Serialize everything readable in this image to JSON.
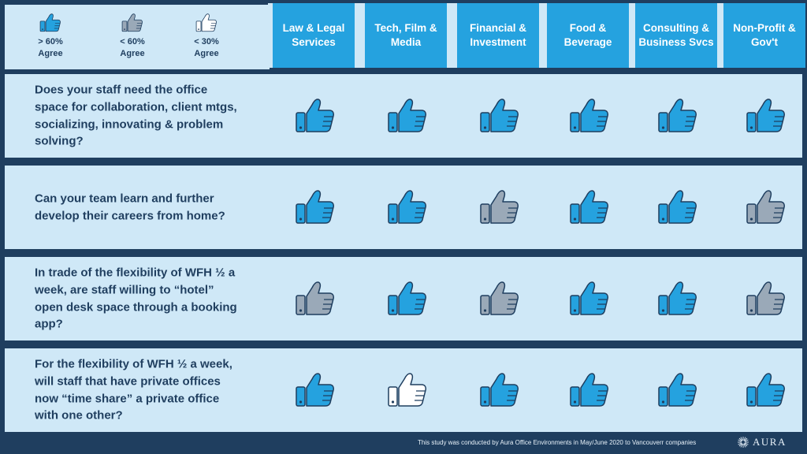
{
  "legend": [
    {
      "label": "> 60%\nAgree",
      "level": "high",
      "icon": "thumbs-up-blue-icon"
    },
    {
      "label": "< 60%\nAgree",
      "level": "medium",
      "icon": "thumbs-up-gray-icon"
    },
    {
      "label": "< 30%\nAgree",
      "level": "low",
      "icon": "thumbs-up-white-icon"
    }
  ],
  "colors": {
    "high": "#25a2df",
    "medium": "#9aa9b8",
    "low": "#ffffff",
    "navy": "#1f3e5f",
    "panel": "#cfe8f7"
  },
  "columns": [
    "Law & Legal Services",
    "Tech, Film & Media",
    "Financial & Investment",
    "Food & Beverage",
    "Consulting & Business Svcs",
    "Non-Profit & Gov't"
  ],
  "rows": [
    {
      "question": "Does your staff need the office space for collaboration, client mtgs,  socializing, innovating & problem solving?",
      "ratings": [
        "high",
        "high",
        "high",
        "high",
        "high",
        "high"
      ]
    },
    {
      "question": "Can your team learn and further develop their  careers from home?",
      "ratings": [
        "high",
        "high",
        "medium",
        "high",
        "high",
        "medium"
      ]
    },
    {
      "question": "In trade of the flexibility of WFH ½ a week, are staff willing to “hotel” open desk space through a booking app?",
      "ratings": [
        "medium",
        "high",
        "medium",
        "high",
        "high",
        "medium"
      ]
    },
    {
      "question": "For the flexibility of WFH ½ a week, will staff that have private offices now “time share” a private office with one other?",
      "ratings": [
        "high",
        "low",
        "high",
        "high",
        "high",
        "high"
      ]
    }
  ],
  "footer": {
    "note": "This study was conducted by Aura Office Environments in  May/June 2020 to Vancouverr companies",
    "logo_text": "AURA"
  }
}
